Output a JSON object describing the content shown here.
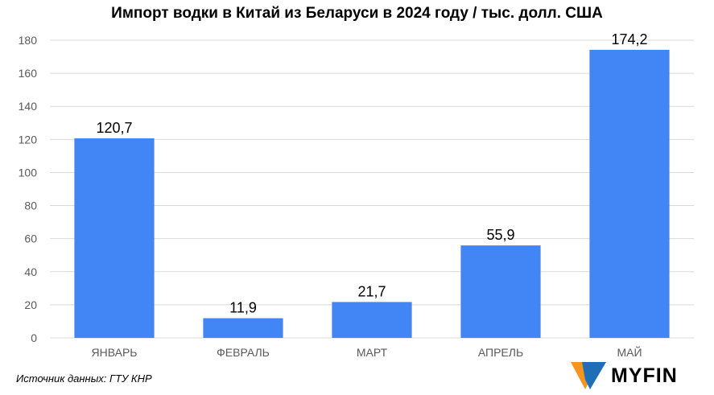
{
  "colors": {
    "bar": "#4285f4",
    "grid": "#d9d9d9",
    "axis_text": "#595959",
    "label_text": "#000000",
    "brand_orange": "#f7941d",
    "brand_blue": "#1f6fb8"
  },
  "chart_data": {
    "type": "bar",
    "title": "Импорт водки в Китай из Беларуси в 2024 году / тыс. долл. США",
    "xlabel": "",
    "ylabel": "",
    "categories": [
      "ЯНВАРЬ",
      "ФЕВРАЛЬ",
      "МАРТ",
      "АПРЕЛЬ",
      "МАЙ"
    ],
    "values": [
      120.7,
      11.9,
      21.7,
      55.9,
      174.2
    ],
    "value_labels": [
      "120,7",
      "11,9",
      "21,7",
      "55,9",
      "174,2"
    ],
    "ylim": [
      0,
      180
    ],
    "yticks": [
      0,
      20,
      40,
      60,
      80,
      100,
      120,
      140,
      160,
      180
    ],
    "grid": true,
    "legend": "none"
  },
  "footer": {
    "source": "Источник данных: ГТУ КНР"
  },
  "brand": {
    "name": "MYFIN",
    "icon": "myfin-logo-icon"
  }
}
